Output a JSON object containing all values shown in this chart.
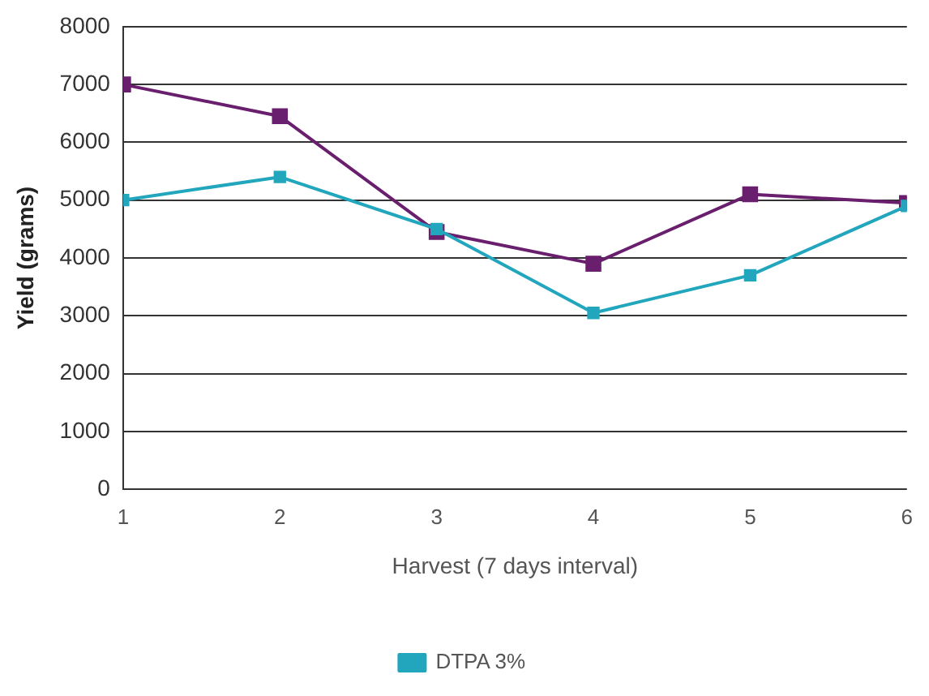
{
  "chart_data": {
    "type": "line",
    "xlabel": "Harvest (7 days interval)",
    "ylabel": "Yield (grams)",
    "x": [
      1,
      2,
      3,
      4,
      5,
      6
    ],
    "xlim": [
      1,
      6
    ],
    "xticks": [
      1,
      2,
      3,
      4,
      5,
      6
    ],
    "ylim": [
      0,
      8000
    ],
    "yticks": [
      0,
      1000,
      2000,
      3000,
      4000,
      5000,
      6000,
      7000,
      8000
    ],
    "grid": "y",
    "legend": "bottom",
    "marker": "square",
    "line_style": "solid",
    "series": [
      {
        "color": "#6a1f6e",
        "values": [
          7000,
          6450,
          4450,
          3900,
          5100,
          4950
        ]
      },
      {
        "name": "DTPA 3%",
        "color": "#22a6bd",
        "values": [
          5000,
          5400,
          4500,
          3050,
          3700,
          4900
        ]
      }
    ]
  }
}
